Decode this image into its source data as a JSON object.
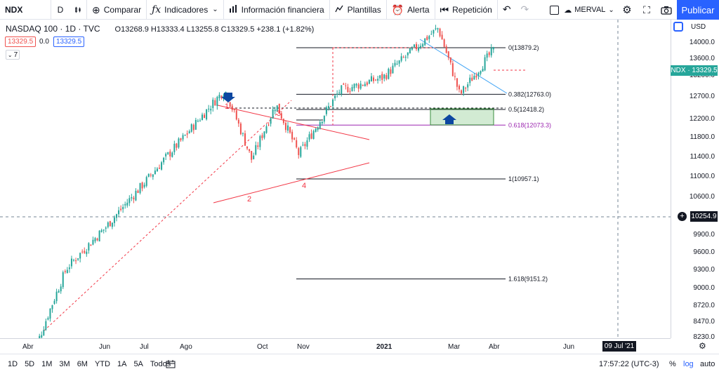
{
  "toolbar": {
    "symbol": "NDX",
    "interval": "D",
    "chart_type_icon": "candles-icon",
    "compare": "Comparar",
    "indicators": "Indicadores",
    "financial_info": "Información financiera",
    "templates": "Plantillas",
    "alert": "Alerta",
    "replay": "Repetición",
    "layout_name": "MERVAL",
    "publish": "Publicar"
  },
  "legend": {
    "title": "NASDAQ 100 · 1D · TVC",
    "ohlc": "O13268.9 H13333.4 L13255.8 C13329.5 +238.1 (+1.82%)",
    "bid": "13329.5",
    "spread": "0.0",
    "ask": "13329.5",
    "indicator_count": "7"
  },
  "price_axis": {
    "currency": "USD",
    "ticks": [
      "14000.0",
      "13600.0",
      "13200.0",
      "12700.0",
      "12200.0",
      "11800.0",
      "11400.0",
      "11000.0",
      "10600.0",
      "9900.0",
      "9600.0",
      "9300.0",
      "9000.0",
      "8720.0",
      "8470.0",
      "8230.0"
    ],
    "last_price_label": "NDX · 13329.5",
    "crosshair_price": "10254.9"
  },
  "time_axis": {
    "labels": [
      "Abr",
      "Jun",
      "Jul",
      "Ago",
      "Oct",
      "Nov",
      "2021",
      "Mar",
      "Abr",
      "Jun"
    ],
    "crosshair_date": "09 Jul '21"
  },
  "fib_levels": [
    "0(13879.2)",
    "0.382(12763.0)",
    "0.5(12418.2)",
    "0.618(12073.3)",
    "1(10957.1)",
    "1.618(9151.2)"
  ],
  "wave_labels": [
    "1",
    "2",
    "3",
    "4"
  ],
  "bottom_bar": {
    "ranges": [
      "1D",
      "5D",
      "1M",
      "3M",
      "6M",
      "YTD",
      "1A",
      "5A",
      "Todos"
    ],
    "time": "17:57:22 (UTC-3)",
    "percent": "%",
    "log": "log",
    "auto": "auto"
  },
  "colors": {
    "up": "#26a69a",
    "down": "#ef5350",
    "accent": "#2962ff",
    "fib_618": "#9c27b0",
    "wave": "#f23645"
  },
  "chart_data": {
    "type": "candlestick",
    "symbol": "NDX",
    "x_range": [
      "2020-04",
      "2021-06"
    ],
    "ylim": [
      8230,
      14200
    ],
    "y_scale": "log",
    "grid": false,
    "close_approx": [
      [
        "2020-04-01",
        7500
      ],
      [
        "2020-05-01",
        9000
      ],
      [
        "2020-06-01",
        9700
      ],
      [
        "2020-07-01",
        10500
      ],
      [
        "2020-08-01",
        11400
      ],
      [
        "2020-09-02",
        12420
      ],
      [
        "2020-09-23",
        10950
      ],
      [
        "2020-10-12",
        12100
      ],
      [
        "2020-10-30",
        11050
      ],
      [
        "2020-12-01",
        12400
      ],
      [
        "2021-01-04",
        12700
      ],
      [
        "2021-02-16",
        13880
      ],
      [
        "2021-03-05",
        12300
      ],
      [
        "2021-03-31",
        13330
      ]
    ]
  }
}
